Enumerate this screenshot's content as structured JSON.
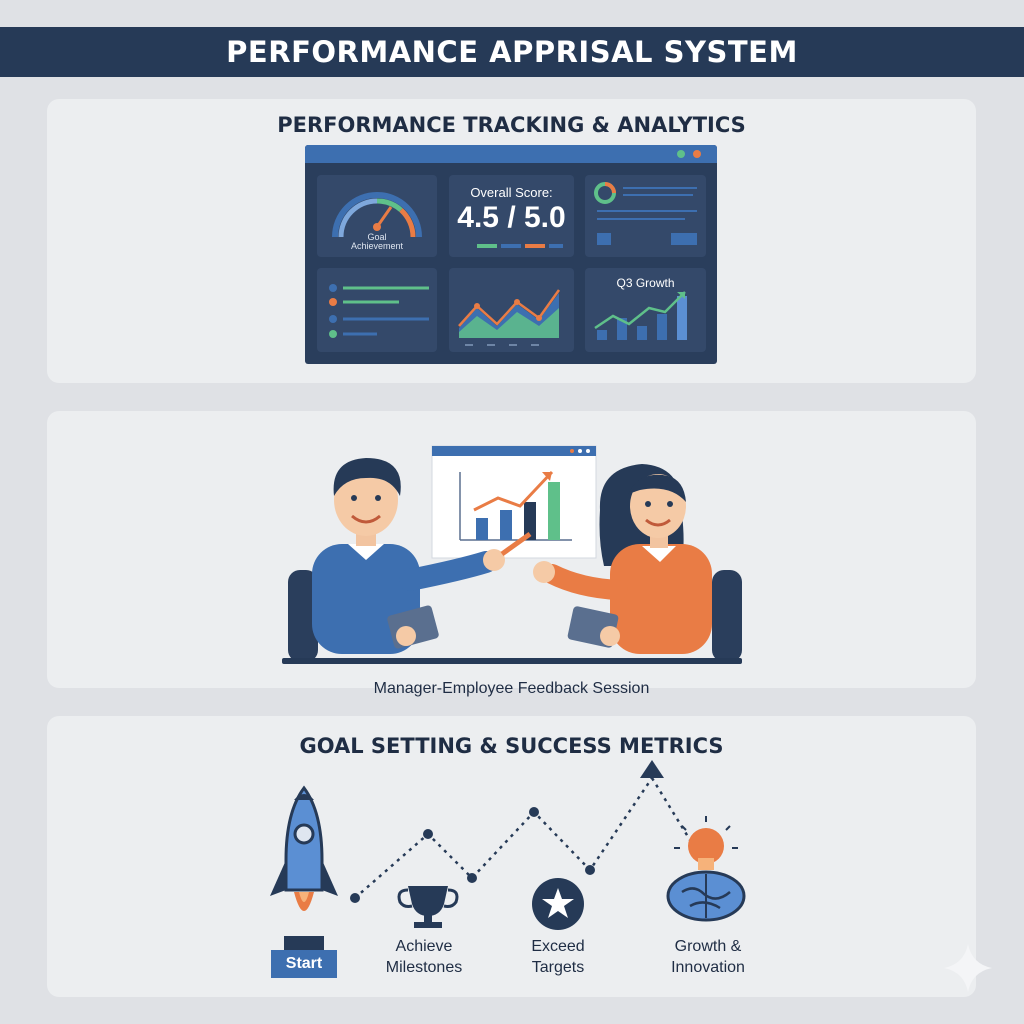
{
  "header": {
    "title": "PERFORMANCE APPRISAL SYSTEM"
  },
  "tracking": {
    "title": "PERFORMANCE TRACKING & ANALYTICS",
    "gauge": {
      "label_line1": "Goal",
      "label_line2": "Achievement"
    },
    "score": {
      "label": "Overall Score:",
      "value": "4.5 / 5.0"
    },
    "growth": {
      "label": "Q3 Growth"
    }
  },
  "feedback": {
    "caption": "Manager-Employee Feedback Session"
  },
  "goals": {
    "title": "GOAL SETTING & SUCCESS METRICS",
    "start_label": "Start",
    "milestones": {
      "line1": "Achieve",
      "line2": "Milestones"
    },
    "targets": {
      "line1": "Exceed",
      "line2": "Targets"
    },
    "growth": {
      "line1": "Growth &",
      "line2": "Innovation"
    }
  },
  "icons": [
    "gauge-icon",
    "line-chart-icon",
    "bar-chart-icon",
    "rocket-icon",
    "trophy-icon",
    "star-icon",
    "lightbulb-icon",
    "brain-icon",
    "sparkle-icon"
  ],
  "colors": {
    "navy": "#263a57",
    "blue": "#3d6fb0",
    "orange": "#e97c45",
    "green": "#5fc08a",
    "panel": "#eceef0"
  }
}
